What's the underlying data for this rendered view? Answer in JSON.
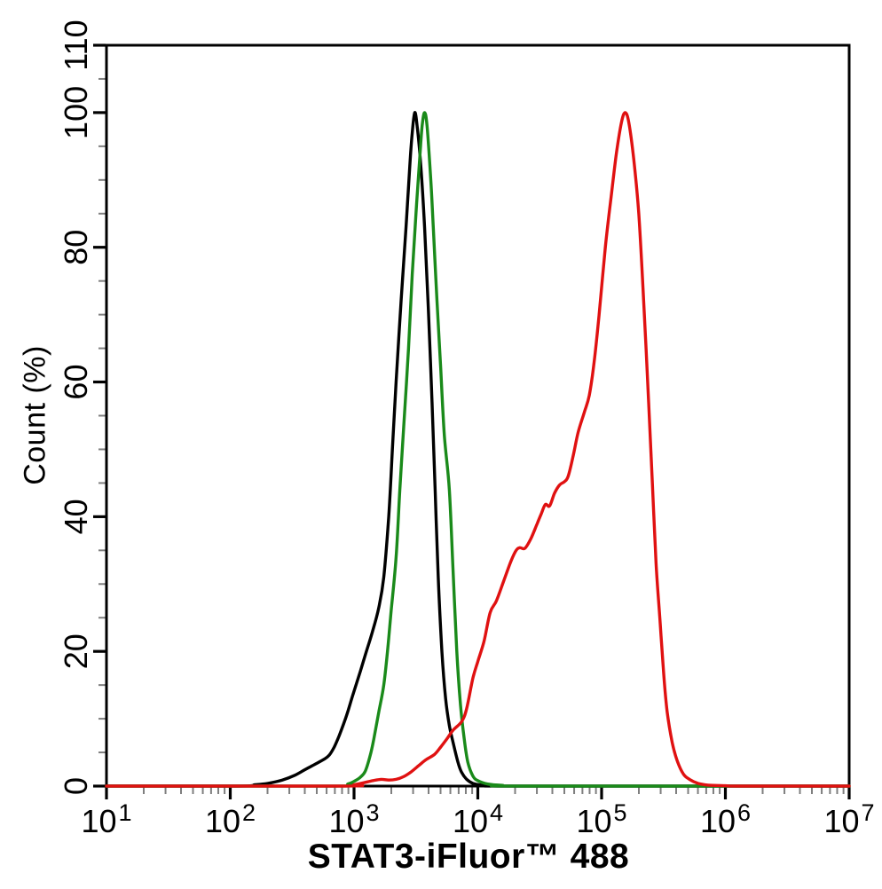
{
  "chart_data": {
    "type": "line",
    "subtype": "flow-cytometry-histogram-overlay",
    "title": "",
    "xlabel": "STAT3-iFluor™ 488",
    "ylabel": "Count (%)",
    "x_scale": "log10",
    "x_log_range": [
      1,
      7
    ],
    "x_tick_base": "10",
    "x_tick_exponents": [
      1,
      2,
      3,
      4,
      5,
      6,
      7
    ],
    "x_minor_ticks": "2-9 within each decade",
    "ylim": [
      0,
      110
    ],
    "y_tick_labels": [
      0,
      20,
      40,
      60,
      80,
      100,
      110
    ],
    "y_minor_step": 5,
    "grid": false,
    "legend": "none",
    "axis_color": "#000000",
    "minor_tick_color": "#7f7f7f",
    "series": [
      {
        "name": "black-curve",
        "color": "#000000",
        "points": [
          [
            1.0,
            0
          ],
          [
            2.05,
            0
          ],
          [
            2.2,
            0.2
          ],
          [
            2.3,
            0.4
          ],
          [
            2.42,
            0.9
          ],
          [
            2.52,
            1.6
          ],
          [
            2.6,
            2.4
          ],
          [
            2.68,
            3.2
          ],
          [
            2.76,
            4.0
          ],
          [
            2.8,
            4.6
          ],
          [
            2.84,
            5.8
          ],
          [
            2.88,
            7.5
          ],
          [
            2.94,
            10.5
          ],
          [
            2.99,
            13.5
          ],
          [
            3.05,
            17
          ],
          [
            3.1,
            20
          ],
          [
            3.15,
            23
          ],
          [
            3.2,
            26.5
          ],
          [
            3.24,
            31
          ],
          [
            3.28,
            40
          ],
          [
            3.31,
            50
          ],
          [
            3.34,
            60
          ],
          [
            3.38,
            72
          ],
          [
            3.42,
            83
          ],
          [
            3.45,
            92
          ],
          [
            3.47,
            97
          ],
          [
            3.49,
            100
          ],
          [
            3.51,
            98
          ],
          [
            3.54,
            92
          ],
          [
            3.57,
            83
          ],
          [
            3.6,
            71
          ],
          [
            3.63,
            57
          ],
          [
            3.655,
            44
          ],
          [
            3.68,
            31
          ],
          [
            3.71,
            20
          ],
          [
            3.74,
            13
          ],
          [
            3.77,
            9
          ],
          [
            3.8,
            6.5
          ],
          [
            3.84,
            3.5
          ],
          [
            3.87,
            2.0
          ],
          [
            3.91,
            1.0
          ],
          [
            3.96,
            0.4
          ],
          [
            4.03,
            0.15
          ],
          [
            4.15,
            0.05
          ],
          [
            4.3,
            0
          ],
          [
            7.0,
            0
          ]
        ]
      },
      {
        "name": "green-curve",
        "color": "#1a8a1a",
        "points": [
          [
            1.0,
            0
          ],
          [
            2.85,
            0
          ],
          [
            2.95,
            0.3
          ],
          [
            3.0,
            0.7
          ],
          [
            3.05,
            1.3
          ],
          [
            3.09,
            2.2
          ],
          [
            3.13,
            4.5
          ],
          [
            3.16,
            7
          ],
          [
            3.2,
            11
          ],
          [
            3.24,
            15
          ],
          [
            3.27,
            20
          ],
          [
            3.3,
            26
          ],
          [
            3.34,
            34
          ],
          [
            3.37,
            44
          ],
          [
            3.4,
            53
          ],
          [
            3.44,
            65
          ],
          [
            3.47,
            76
          ],
          [
            3.5,
            85
          ],
          [
            3.53,
            93
          ],
          [
            3.55,
            98
          ],
          [
            3.57,
            100
          ],
          [
            3.59,
            98
          ],
          [
            3.62,
            90
          ],
          [
            3.64,
            83
          ],
          [
            3.67,
            72
          ],
          [
            3.7,
            62
          ],
          [
            3.73,
            52
          ],
          [
            3.77,
            44
          ],
          [
            3.8,
            32
          ],
          [
            3.83,
            20
          ],
          [
            3.86,
            12
          ],
          [
            3.89,
            7
          ],
          [
            3.92,
            3.5
          ],
          [
            3.96,
            1.5
          ],
          [
            4.0,
            0.8
          ],
          [
            4.08,
            0.3
          ],
          [
            4.2,
            0.1
          ],
          [
            4.35,
            0
          ],
          [
            7.0,
            0
          ]
        ]
      },
      {
        "name": "red-curve",
        "color": "#e01111",
        "points": [
          [
            1.0,
            0
          ],
          [
            2.9,
            0
          ],
          [
            3.0,
            0.2
          ],
          [
            3.08,
            0.5
          ],
          [
            3.15,
            0.8
          ],
          [
            3.22,
            1.0
          ],
          [
            3.28,
            0.9
          ],
          [
            3.34,
            1.0
          ],
          [
            3.4,
            1.4
          ],
          [
            3.46,
            2.1
          ],
          [
            3.52,
            3.0
          ],
          [
            3.58,
            3.9
          ],
          [
            3.65,
            4.7
          ],
          [
            3.7,
            5.8
          ],
          [
            3.75,
            7.0
          ],
          [
            3.8,
            8.3
          ],
          [
            3.87,
            9.6
          ],
          [
            3.91,
            11.5
          ],
          [
            3.96,
            16
          ],
          [
            4.0,
            18.5
          ],
          [
            4.05,
            21.5
          ],
          [
            4.1,
            25.8
          ],
          [
            4.15,
            27.5
          ],
          [
            4.21,
            30.5
          ],
          [
            4.27,
            33.5
          ],
          [
            4.31,
            35.0
          ],
          [
            4.34,
            35.4
          ],
          [
            4.38,
            35.3
          ],
          [
            4.43,
            36.8
          ],
          [
            4.48,
            39
          ],
          [
            4.51,
            40.3
          ],
          [
            4.545,
            41.8
          ],
          [
            4.58,
            41.6
          ],
          [
            4.62,
            43.5
          ],
          [
            4.66,
            44.7
          ],
          [
            4.7,
            45.2
          ],
          [
            4.73,
            46
          ],
          [
            4.77,
            49
          ],
          [
            4.81,
            52.5
          ],
          [
            4.86,
            55.5
          ],
          [
            4.9,
            58
          ],
          [
            4.94,
            63
          ],
          [
            4.98,
            70
          ],
          [
            5.03,
            80
          ],
          [
            5.08,
            88
          ],
          [
            5.12,
            94
          ],
          [
            5.16,
            98.5
          ],
          [
            5.19,
            100
          ],
          [
            5.22,
            98.5
          ],
          [
            5.26,
            93
          ],
          [
            5.3,
            85
          ],
          [
            5.34,
            72
          ],
          [
            5.38,
            57
          ],
          [
            5.41,
            45
          ],
          [
            5.44,
            33
          ],
          [
            5.47,
            25
          ],
          [
            5.5,
            17
          ],
          [
            5.53,
            11
          ],
          [
            5.57,
            6.5
          ],
          [
            5.61,
            3.8
          ],
          [
            5.66,
            1.8
          ],
          [
            5.71,
            1.0
          ],
          [
            5.78,
            0.4
          ],
          [
            5.86,
            0.15
          ],
          [
            6.0,
            0.05
          ],
          [
            6.15,
            0
          ],
          [
            7.0,
            0
          ]
        ]
      }
    ]
  }
}
